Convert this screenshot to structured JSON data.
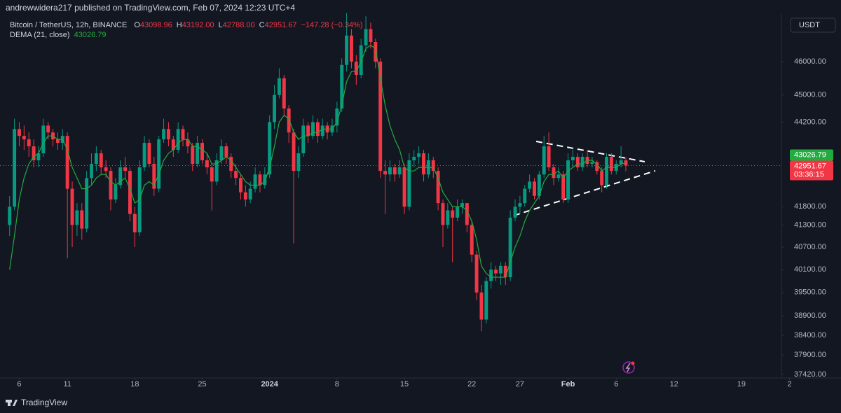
{
  "header": {
    "published": "andrewwidera217 published on TradingView.com, Feb 07, 2024 12:23 UTC+4"
  },
  "chart_data": {
    "type": "candlestick",
    "title": "Bitcoin / TetherUS, 12h, BINANCE",
    "ohlc_prefixes": [
      "O",
      "H",
      "L",
      "C"
    ],
    "last_candle_labels": [
      "43098.96",
      "43192.00",
      "42788.00",
      "42951.67"
    ],
    "change_label": "−147.28 (−0.34%)",
    "currency": "USDT",
    "countdown": "03:36:15",
    "up_color": "#089981",
    "down_color": "#f23645",
    "candles": [
      [
        41300,
        42100,
        41000,
        41800
      ],
      [
        41800,
        44300,
        41700,
        44000
      ],
      [
        44000,
        44200,
        43500,
        43800
      ],
      [
        43800,
        44100,
        43400,
        43700
      ],
      [
        43700,
        43900,
        43200,
        43500
      ],
      [
        43500,
        43700,
        42900,
        43100
      ],
      [
        43100,
        43500,
        42900,
        43300
      ],
      [
        43300,
        44300,
        43200,
        44100
      ],
      [
        44100,
        44200,
        43700,
        43900
      ],
      [
        43900,
        44000,
        43500,
        43700
      ],
      [
        43700,
        43900,
        43400,
        43600
      ],
      [
        43600,
        44000,
        43400,
        43800
      ],
      [
        43800,
        43900,
        40400,
        42300
      ],
      [
        42300,
        42500,
        40700,
        41300
      ],
      [
        41300,
        41900,
        41000,
        41700
      ],
      [
        41700,
        41900,
        40900,
        41200
      ],
      [
        41200,
        42800,
        41100,
        42600
      ],
      [
        42600,
        43300,
        42400,
        43000
      ],
      [
        43000,
        43500,
        42800,
        43300
      ],
      [
        43300,
        43400,
        42700,
        42900
      ],
      [
        42900,
        43100,
        42600,
        42800
      ],
      [
        42800,
        42900,
        41700,
        42000
      ],
      [
        42000,
        42600,
        41900,
        42400
      ],
      [
        42400,
        43100,
        42300,
        42900
      ],
      [
        42900,
        43200,
        42600,
        42800
      ],
      [
        42800,
        42900,
        41400,
        41600
      ],
      [
        41600,
        41800,
        40700,
        41100
      ],
      [
        41100,
        43100,
        41000,
        42900
      ],
      [
        42900,
        43800,
        42800,
        43600
      ],
      [
        43600,
        43700,
        42900,
        43000
      ],
      [
        43000,
        43200,
        42100,
        42300
      ],
      [
        42300,
        43800,
        42200,
        43700
      ],
      [
        43700,
        44300,
        43600,
        44000
      ],
      [
        44000,
        44200,
        43500,
        43700
      ],
      [
        43700,
        43800,
        43200,
        43400
      ],
      [
        43400,
        44200,
        43300,
        44000
      ],
      [
        44000,
        44100,
        43500,
        43700
      ],
      [
        43700,
        43900,
        43300,
        43500
      ],
      [
        43500,
        43600,
        42800,
        43000
      ],
      [
        43000,
        43800,
        42900,
        43600
      ],
      [
        43600,
        43700,
        43000,
        43100
      ],
      [
        43100,
        43300,
        42700,
        42900
      ],
      [
        42900,
        43000,
        41700,
        42500
      ],
      [
        42500,
        43300,
        42400,
        43100
      ],
      [
        43100,
        43700,
        43000,
        43500
      ],
      [
        43500,
        43600,
        43000,
        43200
      ],
      [
        43200,
        43300,
        42600,
        42800
      ],
      [
        42800,
        43000,
        42400,
        42600
      ],
      [
        42600,
        42700,
        42000,
        42200
      ],
      [
        42200,
        42400,
        41800,
        42000
      ],
      [
        42000,
        42500,
        41900,
        42300
      ],
      [
        42300,
        42900,
        42200,
        42700
      ],
      [
        42700,
        42800,
        42200,
        42400
      ],
      [
        42400,
        42900,
        42300,
        42700
      ],
      [
        42700,
        44400,
        42600,
        44200
      ],
      [
        44200,
        45300,
        44000,
        45000
      ],
      [
        45000,
        45800,
        44900,
        45500
      ],
      [
        45500,
        45600,
        44400,
        44600
      ],
      [
        44600,
        44700,
        43600,
        43900
      ],
      [
        43900,
        44000,
        40800,
        42800
      ],
      [
        42800,
        43500,
        42600,
        43300
      ],
      [
        43300,
        44300,
        43200,
        44100
      ],
      [
        44100,
        44200,
        43600,
        43800
      ],
      [
        43800,
        44400,
        43700,
        44200
      ],
      [
        44200,
        44300,
        43600,
        43800
      ],
      [
        43800,
        44300,
        43700,
        44100
      ],
      [
        44100,
        44200,
        43700,
        43900
      ],
      [
        43900,
        44300,
        43800,
        44100
      ],
      [
        44100,
        44800,
        43900,
        44600
      ],
      [
        44600,
        46100,
        44500,
        45900
      ],
      [
        45900,
        47500,
        45700,
        46800
      ],
      [
        46800,
        47000,
        45800,
        46000
      ],
      [
        46000,
        46200,
        45300,
        45600
      ],
      [
        45600,
        46700,
        45500,
        46500
      ],
      [
        46500,
        47400,
        46300,
        47000
      ],
      [
        47000,
        47200,
        46400,
        46600
      ],
      [
        46600,
        46700,
        45800,
        46000
      ],
      [
        46000,
        46100,
        42600,
        42800
      ],
      [
        42800,
        43100,
        41600,
        42700
      ],
      [
        42700,
        43100,
        42500,
        42900
      ],
      [
        42900,
        43000,
        42500,
        42700
      ],
      [
        42700,
        43100,
        42600,
        42900
      ],
      [
        42900,
        43000,
        41600,
        41800
      ],
      [
        41800,
        43300,
        41700,
        43100
      ],
      [
        43100,
        43400,
        42900,
        43200
      ],
      [
        43200,
        43500,
        43000,
        43300
      ],
      [
        43300,
        43400,
        42500,
        42700
      ],
      [
        42700,
        43300,
        42600,
        43100
      ],
      [
        43100,
        43200,
        42600,
        42800
      ],
      [
        42800,
        42900,
        41700,
        41900
      ],
      [
        41900,
        42000,
        40700,
        41300
      ],
      [
        41300,
        41900,
        41200,
        41700
      ],
      [
        41700,
        41800,
        40300,
        41500
      ],
      [
        41500,
        42000,
        41400,
        41800
      ],
      [
        41800,
        42000,
        41600,
        41900
      ],
      [
        41900,
        41900,
        41100,
        41300
      ],
      [
        41300,
        41400,
        40300,
        40500
      ],
      [
        40500,
        40600,
        39300,
        39500
      ],
      [
        39500,
        39700,
        38500,
        38800
      ],
      [
        38800,
        39900,
        38700,
        39800
      ],
      [
        39800,
        40300,
        39600,
        40100
      ],
      [
        40100,
        40200,
        39800,
        40000
      ],
      [
        40000,
        40300,
        39700,
        40200
      ],
      [
        40200,
        40300,
        39700,
        39900
      ],
      [
        39900,
        41700,
        39800,
        41500
      ],
      [
        41500,
        42000,
        41400,
        41800
      ],
      [
        41800,
        42100,
        41600,
        41900
      ],
      [
        41900,
        42400,
        41800,
        42300
      ],
      [
        42300,
        42700,
        42200,
        42500
      ],
      [
        42500,
        42600,
        42000,
        42100
      ],
      [
        42100,
        42800,
        42000,
        42700
      ],
      [
        42700,
        43800,
        42600,
        43500
      ],
      [
        43500,
        43900,
        42800,
        42900
      ],
      [
        42900,
        43000,
        42400,
        42600
      ],
      [
        42600,
        42900,
        42500,
        42700
      ],
      [
        42700,
        42800,
        41900,
        42000
      ],
      [
        42000,
        43300,
        41900,
        43100
      ],
      [
        43100,
        43400,
        42900,
        43200
      ],
      [
        43200,
        43300,
        42800,
        42900
      ],
      [
        42900,
        43300,
        42800,
        43200
      ],
      [
        43200,
        43400,
        42900,
        43000
      ],
      [
        43000,
        43200,
        42900,
        43050
      ],
      [
        43050,
        43100,
        42700,
        42800
      ],
      [
        42800,
        42900,
        42200,
        42400
      ],
      [
        42400,
        43300,
        42300,
        43200
      ],
      [
        43200,
        43300,
        42700,
        42800
      ],
      [
        42800,
        43100,
        42700,
        43000
      ],
      [
        43000,
        43500,
        42900,
        43098.96
      ],
      [
        43098.96,
        43192,
        42788,
        42951.67
      ]
    ],
    "indicator": {
      "name": "DEMA (21, close)",
      "color": "#22ab3f",
      "values": [
        40100,
        41000,
        42000,
        42600,
        43000,
        43200,
        43300,
        43600,
        43800,
        43800,
        43700,
        43700,
        43400,
        42900,
        42600,
        42300,
        42300,
        42400,
        42600,
        42700,
        42700,
        42500,
        42400,
        42500,
        42600,
        42300,
        41900,
        42000,
        42400,
        42500,
        42400,
        42700,
        43100,
        43300,
        43400,
        43600,
        43700,
        43700,
        43500,
        43500,
        43400,
        43300,
        43000,
        43000,
        43100,
        43200,
        43100,
        42900,
        42700,
        42500,
        42400,
        42400,
        42400,
        42500,
        42900,
        43500,
        44200,
        44400,
        44300,
        43900,
        43700,
        43800,
        43800,
        43900,
        43900,
        44000,
        44000,
        44000,
        44200,
        44700,
        45400,
        45700,
        45700,
        46000,
        46400,
        46500,
        46400,
        45500,
        44700,
        44100,
        43700,
        43400,
        42900,
        42800,
        42800,
        42900,
        42900,
        42900,
        42900,
        42600,
        42200,
        42000,
        41800,
        41800,
        41800,
        41700,
        41400,
        40900,
        40200,
        40000,
        39900,
        39900,
        39900,
        39900,
        40300,
        40700,
        41000,
        41400,
        41700,
        41900,
        42100,
        42500,
        42700,
        42700,
        42800,
        42600,
        42800,
        42900,
        43000,
        43000,
        43100,
        43100,
        43000,
        42800,
        42900,
        42900,
        42900,
        43000,
        43026.79
      ]
    },
    "xlim": [
      -2,
      162.5
    ],
    "xticks": [
      {
        "value": 2,
        "label": "6"
      },
      {
        "value": 12,
        "label": "11"
      },
      {
        "value": 26,
        "label": "18"
      },
      {
        "value": 40,
        "label": "25"
      },
      {
        "value": 54,
        "label": "2024"
      },
      {
        "value": 68,
        "label": "8"
      },
      {
        "value": 82,
        "label": "15"
      },
      {
        "value": 96,
        "label": "22"
      },
      {
        "value": 106,
        "label": "27"
      },
      {
        "value": 116,
        "label": "Feb"
      },
      {
        "value": 126,
        "label": "6"
      },
      {
        "value": 138,
        "label": "12"
      },
      {
        "value": 152,
        "label": "19"
      },
      {
        "value": 162,
        "label": "2"
      }
    ],
    "ylim": [
      37160,
      47470
    ],
    "log_scale": true,
    "grid": false,
    "yticks": [
      {
        "value": 46000,
        "label": "46000.00"
      },
      {
        "value": 45000,
        "label": "45000.00"
      },
      {
        "value": 44200,
        "label": "44200.00"
      },
      {
        "value": 41800,
        "label": "41800.00"
      },
      {
        "value": 41300,
        "label": "41300.00"
      },
      {
        "value": 40700,
        "label": "40700.00"
      },
      {
        "value": 40100,
        "label": "40100.00"
      },
      {
        "value": 39500,
        "label": "39500.00"
      },
      {
        "value": 38900,
        "label": "38900.00"
      },
      {
        "value": 38400,
        "label": "38400.00"
      },
      {
        "value": 37900,
        "label": "37900.00"
      },
      {
        "value": 37420,
        "label": "37420.00"
      }
    ]
  },
  "footer": {
    "brand": "TradingView"
  }
}
